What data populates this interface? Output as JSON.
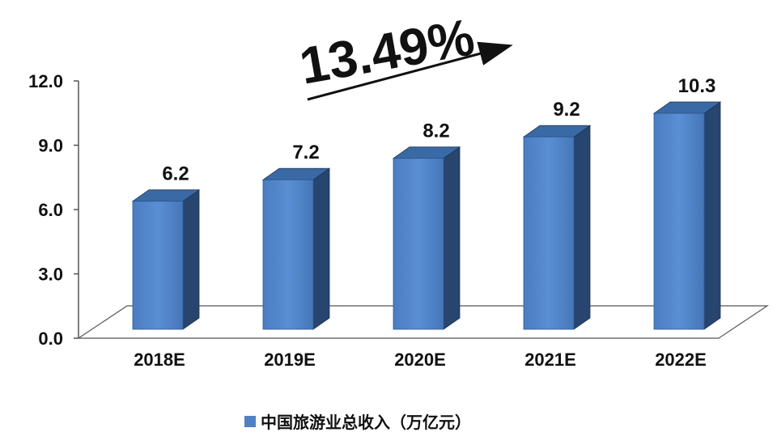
{
  "chart_data": {
    "type": "bar",
    "categories": [
      "2018E",
      "2019E",
      "2020E",
      "2021E",
      "2022E"
    ],
    "series": [
      {
        "name": "中国旅游业总收入（万亿元）",
        "values": [
          6.2,
          7.2,
          8.2,
          9.2,
          10.3
        ],
        "color": "#4f81c3"
      }
    ],
    "data_labels": [
      "6.2",
      "7.2",
      "8.2",
      "9.2",
      "10.3"
    ],
    "ylim": [
      0,
      12
    ],
    "yticks": [
      "0.0",
      "3.0",
      "6.0",
      "9.0",
      "12.0"
    ],
    "ytick_values": [
      0,
      3,
      6,
      9,
      12
    ],
    "annotation": "13.49%",
    "legend_position": "bottom",
    "grid": false,
    "style": "3d-column"
  }
}
